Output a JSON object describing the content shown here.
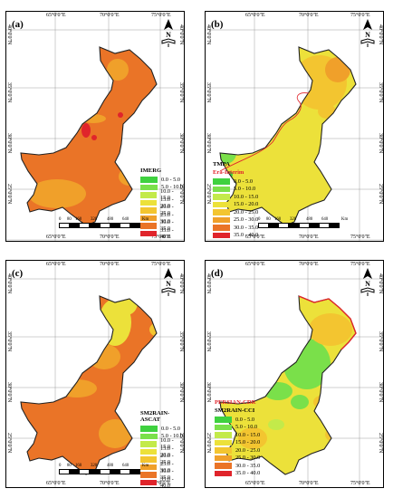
{
  "panels": [
    {
      "label": "(a)",
      "legend_titles": [
        "IMERG"
      ],
      "show_scale": true
    },
    {
      "label": "(b)",
      "legend_titles": [
        "TMPA",
        "Era-Interim"
      ],
      "show_scale": true
    },
    {
      "label": "(c)",
      "legend_titles": [
        "SM2RAIN-ASCAT"
      ],
      "show_scale": true
    },
    {
      "label": "(d)",
      "legend_titles": [
        "PERSIAN-CDR",
        "SM2RAIN-CCI"
      ],
      "show_scale": false
    }
  ],
  "legend": [
    {
      "range": "0.0 - 5.0",
      "color": "#3fd13f"
    },
    {
      "range": "5.0 - 10.0",
      "color": "#7ae04a"
    },
    {
      "range": "10.0 - 15.0",
      "color": "#c3ea4a"
    },
    {
      "range": "15.0 - 20.0",
      "color": "#ece13a"
    },
    {
      "range": "20.0 - 25.0",
      "color": "#f3c530"
    },
    {
      "range": "25.0 - 30.0",
      "color": "#f0a02a"
    },
    {
      "range": "30.0 - 35.0",
      "color": "#ea7427"
    },
    {
      "range": "35.0 - 40.0",
      "color": "#e0242b"
    }
  ],
  "lon_labels": [
    "65°0'0\"E",
    "70°0'0\"E",
    "75°0'0\"E"
  ],
  "lat_labels": [
    "40°0'0\"N",
    "35°0'0\"N",
    "30°0'0\"N",
    "25°0'0\"N",
    "20°0'0\"N"
  ],
  "scale": {
    "ticks": [
      "0",
      "80",
      "160",
      "320",
      "480",
      "640"
    ],
    "unit": "Km"
  },
  "north_label": "N"
}
